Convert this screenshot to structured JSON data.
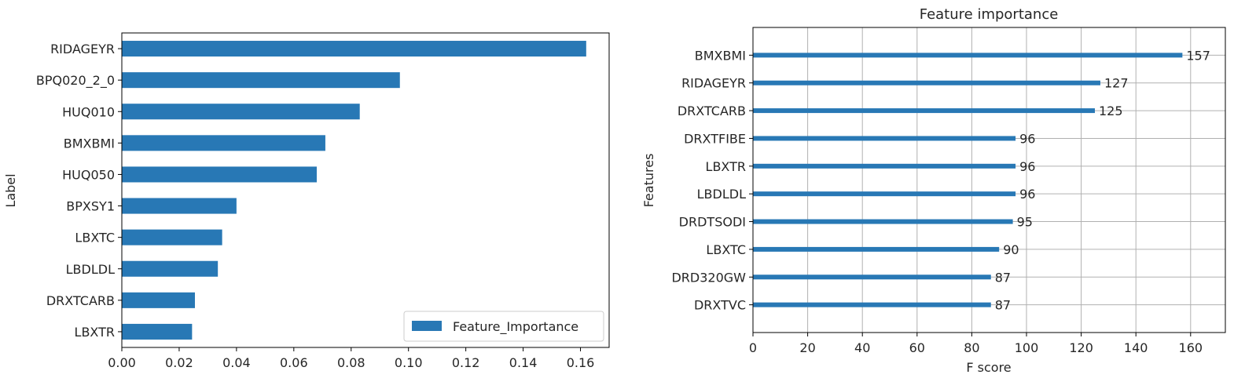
{
  "chart_data": [
    {
      "type": "bar",
      "orientation": "horizontal",
      "title": "",
      "xlabel": "",
      "ylabel": "Label",
      "xlim": [
        0,
        0.17
      ],
      "xticks": [
        "0.00",
        "0.02",
        "0.04",
        "0.06",
        "0.08",
        "0.10",
        "0.12",
        "0.14",
        "0.16"
      ],
      "categories": [
        "RIDAGEYR",
        "BPQ020_2_0",
        "HUQ010",
        "BMXBMI",
        "HUQ050",
        "BPXSY1",
        "LBXTC",
        "LBDLDL",
        "DRXTCARB",
        "LBXTR"
      ],
      "series": [
        {
          "name": "Feature_Importance",
          "values": [
            0.162,
            0.097,
            0.083,
            0.071,
            0.068,
            0.04,
            0.035,
            0.0335,
            0.0255,
            0.0245
          ]
        }
      ],
      "grid": false,
      "legend": "lower-right",
      "color": "#2878b5"
    },
    {
      "type": "bar",
      "orientation": "horizontal",
      "title": "Feature importance",
      "xlabel": "F score",
      "ylabel": "Features",
      "xlim": [
        0,
        172.7
      ],
      "xticks": [
        "0",
        "20",
        "40",
        "60",
        "80",
        "100",
        "120",
        "140",
        "160"
      ],
      "categories": [
        "BMXBMI",
        "RIDAGEYR",
        "DRXTCARB",
        "DRXTFIBE",
        "LBXTR",
        "LBDLDL",
        "DRDTSODI",
        "LBXTC",
        "DRD320GW",
        "DRXTVC"
      ],
      "values": [
        157,
        127,
        125,
        96,
        96,
        96,
        95,
        90,
        87,
        87
      ],
      "value_labels": [
        "157",
        "127",
        "125",
        "96",
        "96",
        "96",
        "95",
        "90",
        "87",
        "87"
      ],
      "grid": true,
      "color": "#2878b5"
    }
  ]
}
